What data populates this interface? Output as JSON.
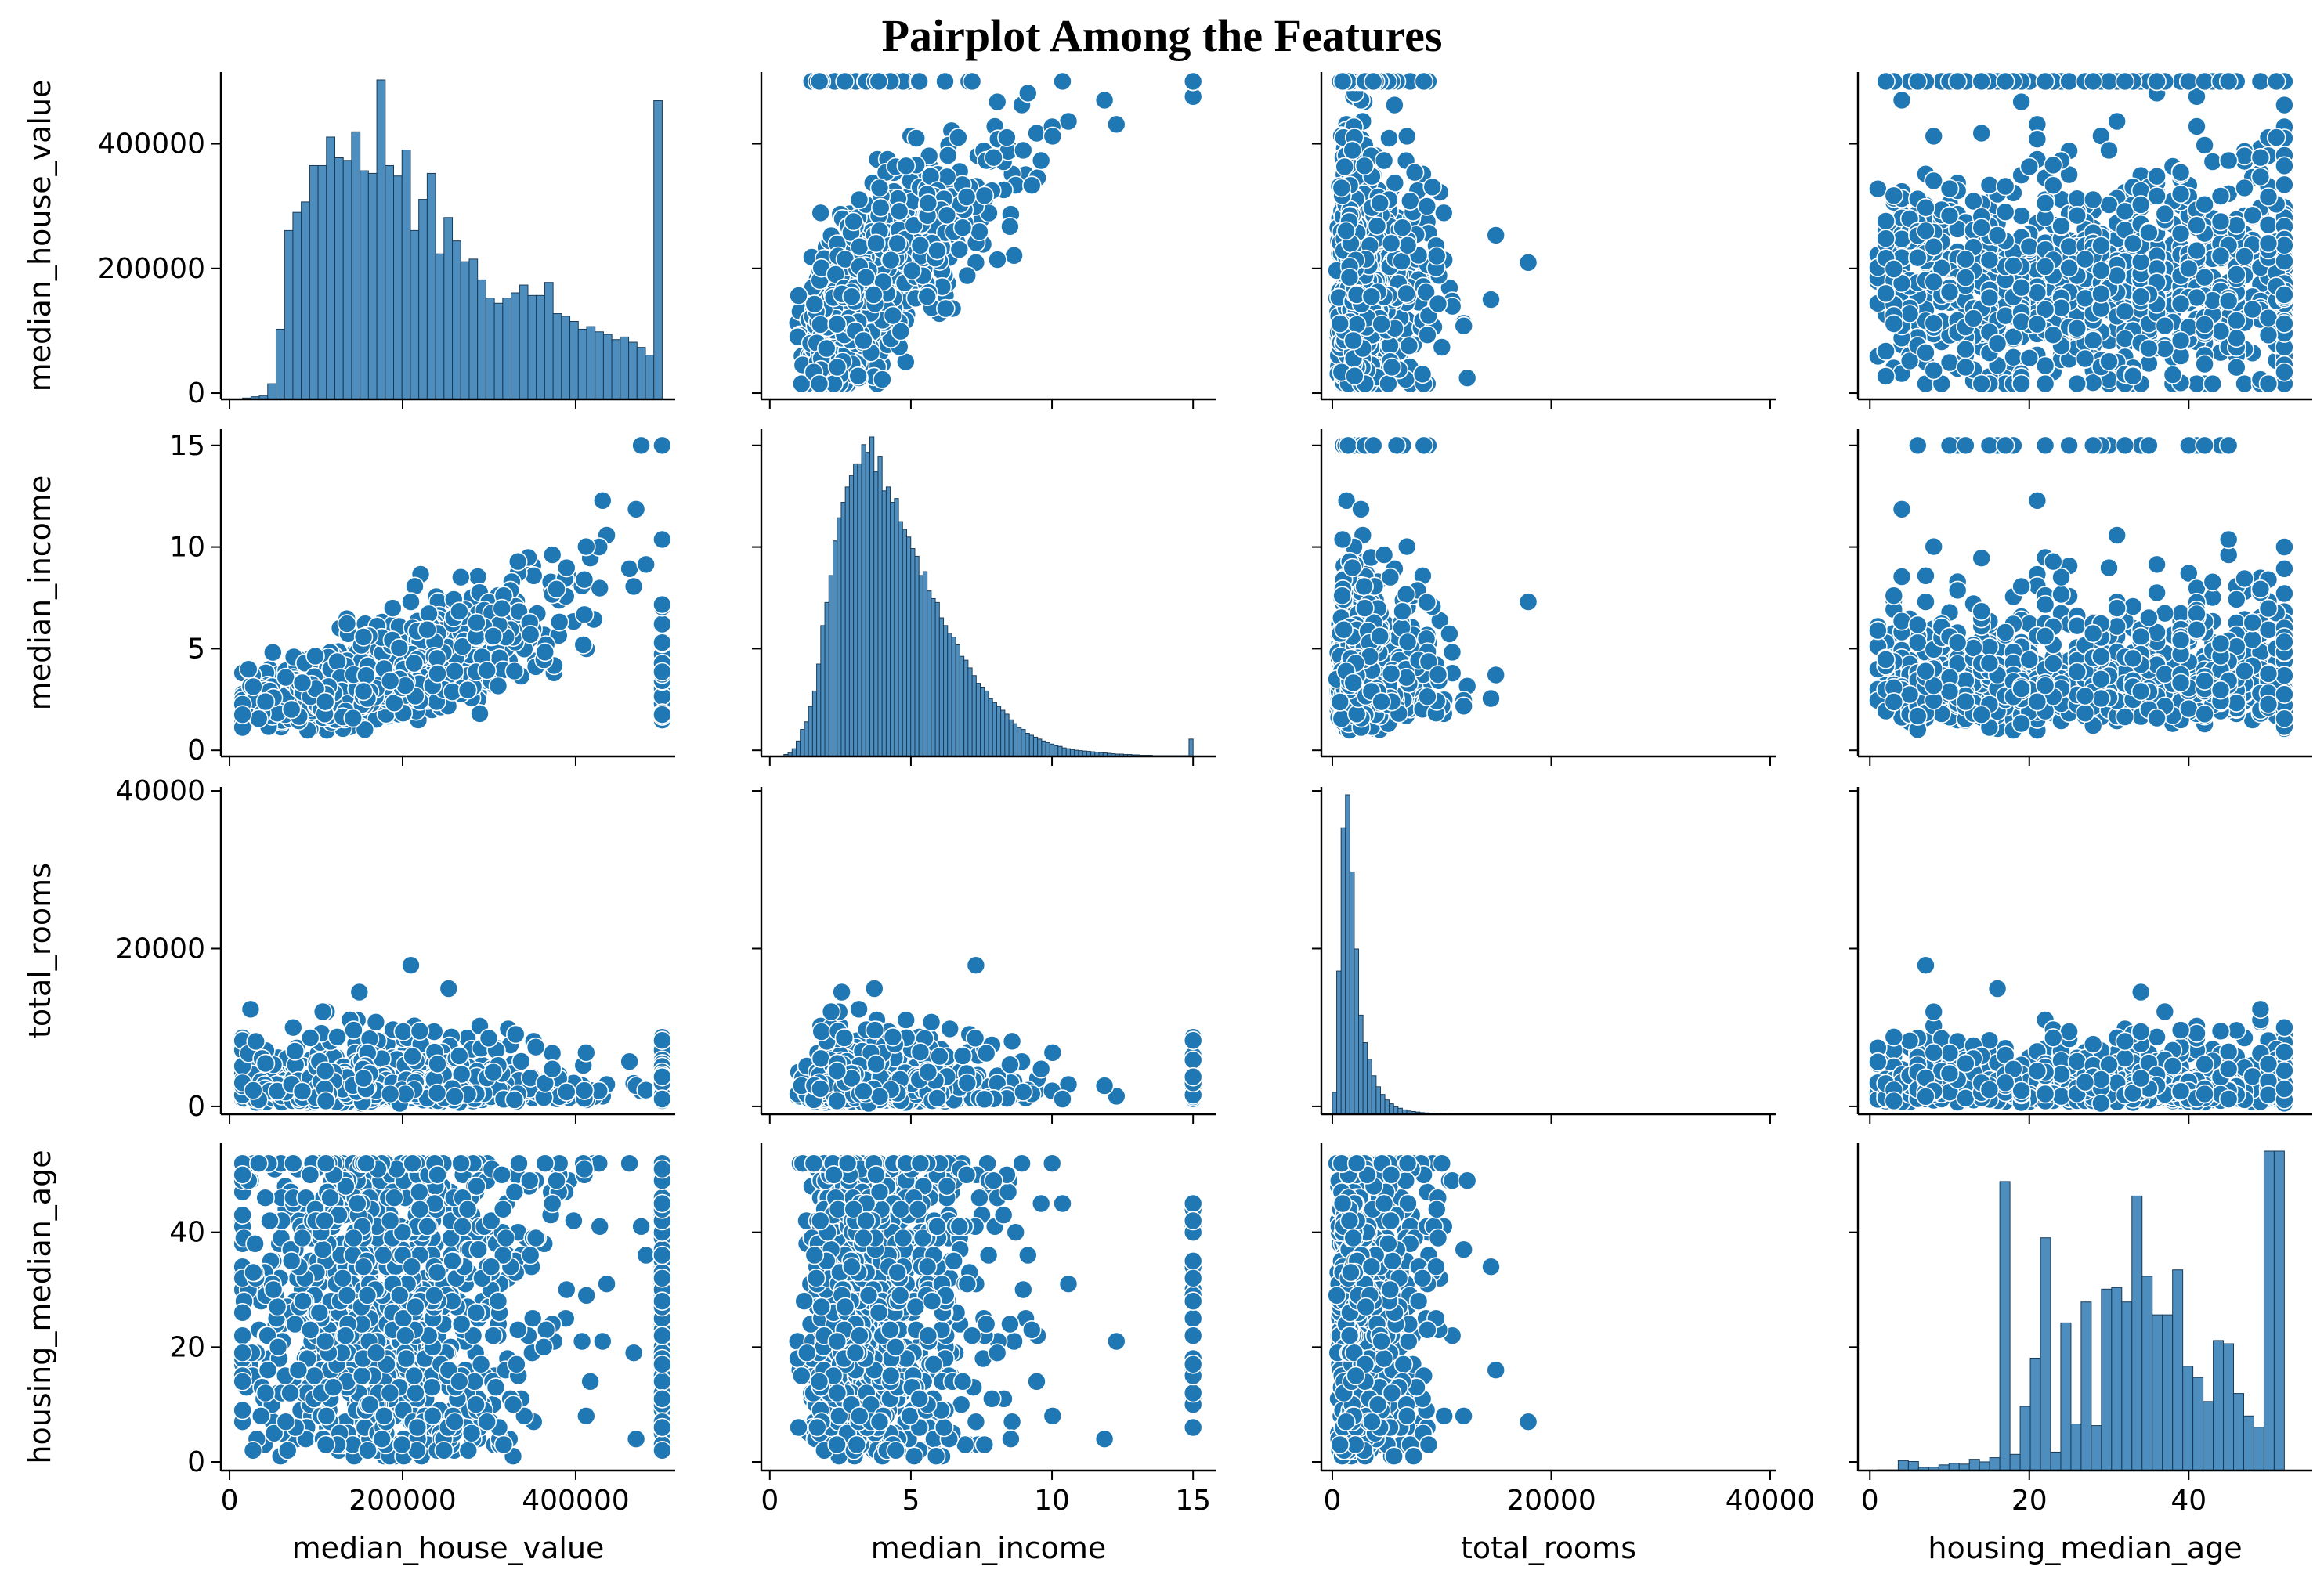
{
  "title": "Pairplot Among the Features",
  "colors": {
    "marker": "#1f77b4",
    "bar": "#4d8ebf",
    "axis": "#000000"
  },
  "chart_data": {
    "type": "scatter",
    "title": "Pairplot Among the Features",
    "variables": [
      {
        "name": "median_house_value",
        "range": [
          -10000,
          515000
        ],
        "ticks": [
          0,
          200000,
          400000
        ],
        "tick_labels": [
          "0",
          "200000",
          "400000"
        ]
      },
      {
        "name": "median_income",
        "range": [
          -0.3,
          15.8
        ],
        "ticks": [
          0,
          5,
          10,
          15
        ],
        "tick_labels": [
          "0",
          "5",
          "10",
          "15"
        ]
      },
      {
        "name": "total_rooms",
        "range": [
          -1000,
          40500
        ],
        "ticks": [
          0,
          20000,
          40000
        ],
        "tick_labels": [
          "0",
          "20000",
          "40000"
        ]
      },
      {
        "name": "housing_median_age",
        "range": [
          -1.5,
          55.5
        ],
        "ticks": [
          0,
          20,
          40
        ],
        "tick_labels": [
          "0",
          "20",
          "40"
        ]
      }
    ],
    "diagonal": [
      {
        "variable": "median_house_value",
        "bin_start": 15000,
        "bin_width": 9700,
        "counts": [
          5,
          10,
          15,
          60,
          270,
          650,
          720,
          760,
          900,
          900,
          1010,
          930,
          920,
          1030,
          880,
          870,
          1230,
          900,
          860,
          960,
          650,
          770,
          870,
          560,
          700,
          610,
          530,
          540,
          460,
          390,
          370,
          390,
          410,
          440,
          400,
          400,
          450,
          330,
          320,
          300,
          270,
          280,
          260,
          250,
          230,
          240,
          220,
          200,
          170,
          1150
        ]
      },
      {
        "variable": "median_income",
        "bin_start": 0.5,
        "bin_width": 0.145,
        "counts": [
          5,
          10,
          20,
          40,
          70,
          90,
          130,
          170,
          240,
          340,
          400,
          470,
          560,
          620,
          660,
          700,
          730,
          760,
          760,
          810,
          790,
          830,
          740,
          780,
          690,
          700,
          660,
          670,
          610,
          590,
          570,
          540,
          520,
          470,
          480,
          430,
          410,
          400,
          360,
          340,
          320,
          310,
          290,
          260,
          250,
          230,
          210,
          190,
          180,
          170,
          150,
          140,
          130,
          120,
          110,
          95,
          85,
          75,
          70,
          60,
          55,
          50,
          45,
          40,
          36,
          32,
          28,
          26,
          22,
          20,
          18,
          16,
          15,
          14,
          13,
          12,
          11,
          10,
          9,
          8,
          7,
          6,
          6,
          5,
          5,
          4,
          4,
          3,
          3,
          3,
          2,
          2,
          2,
          2,
          2,
          2,
          2,
          2,
          2,
          45
        ]
      },
      {
        "variable": "total_rooms",
        "bin_start": 0,
        "bin_width": 400,
        "counts": [
          200,
          1300,
          2600,
          2900,
          2200,
          1500,
          900,
          650,
          500,
          350,
          250,
          180,
          130,
          95,
          70,
          55,
          40,
          30,
          25,
          20,
          15,
          12,
          10,
          8,
          6,
          5,
          4,
          3,
          3,
          2,
          2,
          2,
          1,
          1,
          1,
          1,
          1,
          1,
          1,
          1,
          1,
          1,
          1,
          1,
          1,
          1,
          1,
          1,
          1,
          1
        ]
      },
      {
        "variable": "housing_median_age",
        "bin_start": 1,
        "bin_width": 1.275,
        "counts": [
          4,
          4,
          62,
          56,
          20,
          21,
          35,
          45,
          40,
          70,
          54,
          80,
          1800,
          101,
          400,
          700,
          1450,
          115,
          920,
          290,
          1050,
          280,
          1130,
          1140,
          1050,
          1710,
          1210,
          970,
          970,
          1250,
          650,
          580,
          430,
          810,
          790,
          480,
          340,
          270,
          1990,
          1990
        ]
      }
    ]
  }
}
